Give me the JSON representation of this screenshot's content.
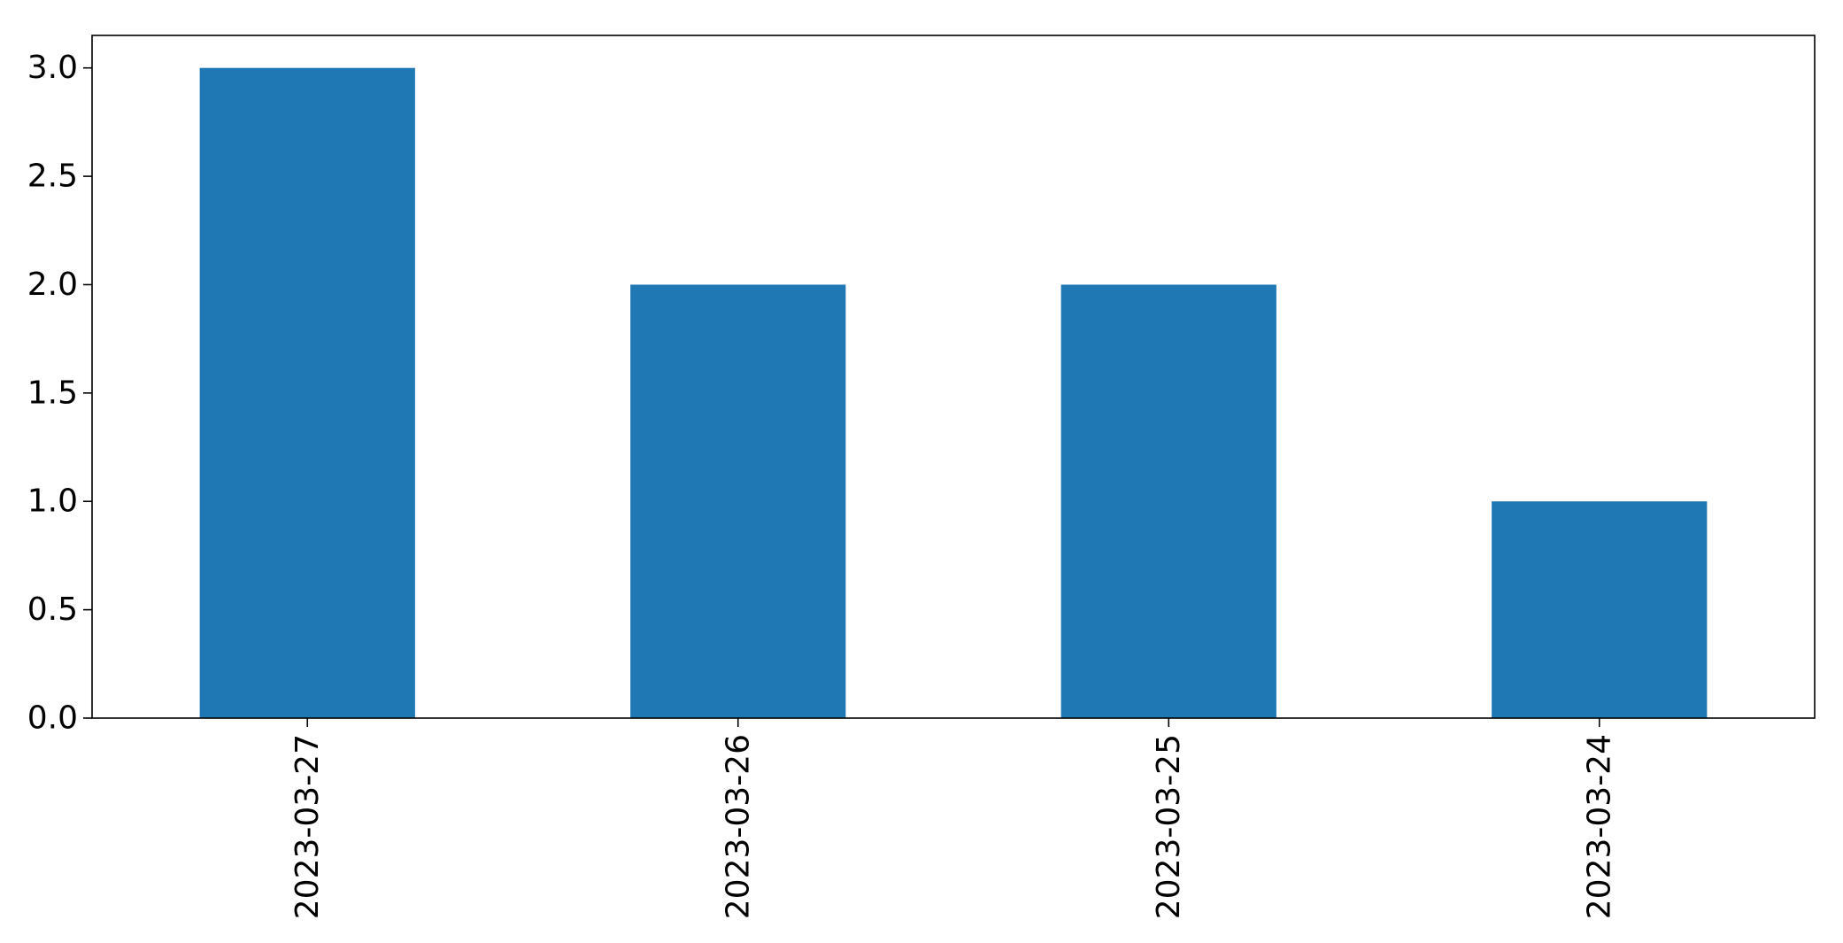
{
  "chart_data": {
    "type": "bar",
    "title": "",
    "xlabel": "",
    "ylabel": "",
    "categories": [
      "2023-03-27",
      "2023-03-26",
      "2023-03-25",
      "2023-03-24"
    ],
    "values": [
      3,
      2,
      2,
      1
    ],
    "ylim": [
      0,
      3.15
    ],
    "yticks": [
      0.0,
      0.5,
      1.0,
      1.5,
      2.0,
      2.5,
      3.0
    ],
    "ytick_labels": [
      "0.0",
      "0.5",
      "1.0",
      "1.5",
      "2.0",
      "2.5",
      "3.0"
    ],
    "xtick_rotation": "vertical",
    "grid": false,
    "legend": "none",
    "bar_color": "#1f77b4"
  }
}
